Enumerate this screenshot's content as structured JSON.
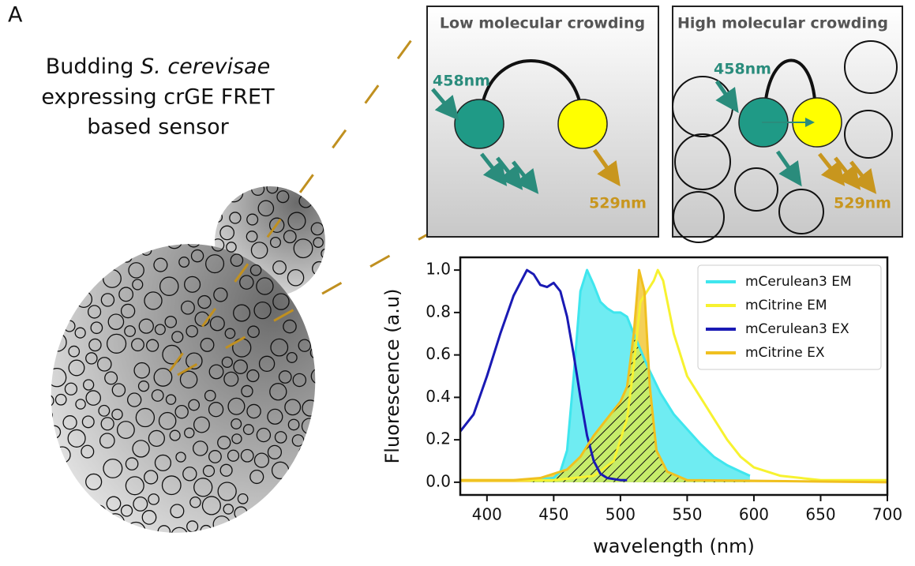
{
  "panel_label": "A",
  "cell_label": {
    "line1_prefix": "Budding",
    "line1_species": "S. cerevisae",
    "line2": "expressing crGE FRET",
    "line3": "based sensor"
  },
  "panels": [
    {
      "title": "Low molecular crowding",
      "excitation": "458nm",
      "emission": "529nm"
    },
    {
      "title": "High molecular crowding",
      "excitation": "458nm",
      "emission": "529nm"
    }
  ],
  "chart_data": {
    "type": "line",
    "xlabel": "wavelength (nm)",
    "ylabel": "Fluorescence (a.u)",
    "xlim": [
      380,
      700
    ],
    "ylim": [
      -0.06,
      1.06
    ],
    "xticks": [
      400,
      450,
      500,
      550,
      600,
      650,
      700
    ],
    "yticks": [
      {
        "value": 0,
        "label": "0.0"
      },
      {
        "value": 0.2,
        "label": "0.2"
      },
      {
        "value": 0.4,
        "label": "0.4"
      },
      {
        "value": 0.6,
        "label": "0.6"
      },
      {
        "value": 0.8,
        "label": "0.8"
      },
      {
        "value": 1,
        "label": "1.0"
      }
    ],
    "legend": "upper right",
    "series": [
      {
        "name": "mCerulean3 EM",
        "color": "#3fe6ee",
        "fill": true,
        "x": [
          433,
          450,
          455,
          460,
          465,
          470,
          475,
          480,
          485,
          490,
          495,
          500,
          505,
          510,
          520,
          530,
          540,
          550,
          560,
          570,
          580,
          590,
          597
        ],
        "values": [
          0.01,
          0.02,
          0.05,
          0.15,
          0.5,
          0.9,
          1.0,
          0.93,
          0.85,
          0.82,
          0.8,
          0.8,
          0.78,
          0.7,
          0.55,
          0.42,
          0.32,
          0.25,
          0.18,
          0.12,
          0.08,
          0.05,
          0.03
        ]
      },
      {
        "name": "mCitrine EM",
        "color": "#f7f230",
        "fill": false,
        "x": [
          380,
          450,
          480,
          495,
          505,
          510,
          515,
          520,
          525,
          528,
          532,
          540,
          550,
          560,
          570,
          580,
          590,
          600,
          620,
          650,
          700
        ],
        "values": [
          0.01,
          0.01,
          0.03,
          0.1,
          0.3,
          0.55,
          0.85,
          0.9,
          0.95,
          1.0,
          0.95,
          0.7,
          0.5,
          0.4,
          0.3,
          0.2,
          0.12,
          0.07,
          0.03,
          0.01,
          0.01
        ]
      },
      {
        "name": "mCerulean3 EX",
        "color": "#1a1ab4",
        "fill": false,
        "x": [
          380,
          390,
          400,
          410,
          420,
          430,
          435,
          440,
          445,
          450,
          455,
          460,
          465,
          470,
          475,
          480,
          485,
          490,
          500,
          505
        ],
        "values": [
          0.24,
          0.32,
          0.5,
          0.7,
          0.88,
          1.0,
          0.98,
          0.93,
          0.92,
          0.94,
          0.9,
          0.78,
          0.6,
          0.4,
          0.22,
          0.1,
          0.04,
          0.02,
          0.01,
          0.01
        ]
      },
      {
        "name": "mCitrine EX",
        "color": "#f0c020",
        "fill": true,
        "x": [
          380,
          420,
          440,
          460,
          470,
          480,
          490,
          500,
          505,
          510,
          514,
          518,
          522,
          527,
          535,
          550,
          700
        ],
        "values": [
          0.01,
          0.01,
          0.02,
          0.06,
          0.12,
          0.22,
          0.3,
          0.38,
          0.45,
          0.7,
          1.0,
          0.9,
          0.45,
          0.15,
          0.05,
          0.01,
          0.0
        ]
      }
    ]
  }
}
